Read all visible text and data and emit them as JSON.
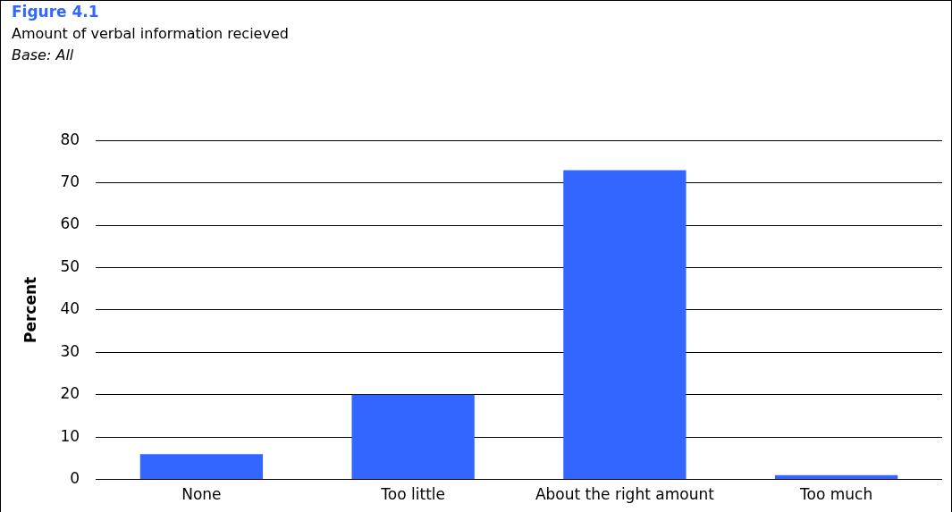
{
  "chart_data": {
    "type": "bar",
    "title": "Figure 4.1",
    "subtitle": "Amount of verbal information recieved",
    "annotations": [
      "Base: All"
    ],
    "ylabel": "Percent",
    "categories": [
      "None",
      "Too little",
      "About the right amount",
      "Too much"
    ],
    "values": [
      6,
      20,
      73,
      1
    ],
    "color": "#3366ff",
    "ylim": [
      0,
      80
    ],
    "yticks": [
      0,
      10,
      20,
      30,
      40,
      50,
      60,
      70,
      80
    ],
    "grid": "y"
  }
}
